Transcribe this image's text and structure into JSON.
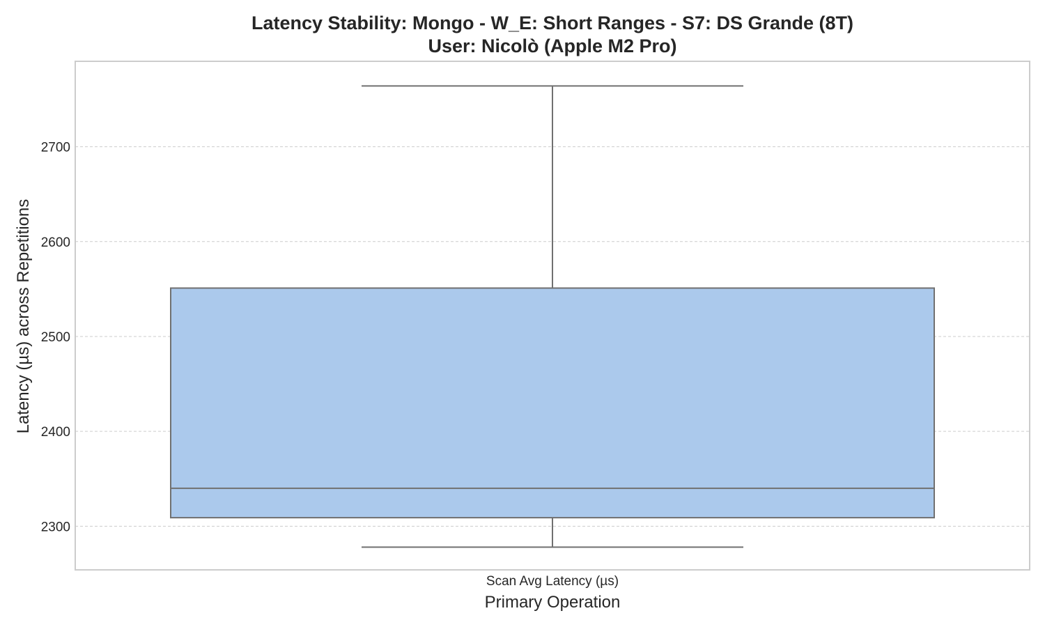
{
  "chart_data": {
    "type": "box",
    "title": "Latency Stability: Mongo - W_E: Short Ranges - S7: DS Grande (8T)",
    "subtitle": "User: Nicolò (Apple M2 Pro)",
    "xlabel": "Primary Operation",
    "ylabel": "Latency (µs) across Repetitions",
    "categories": [
      "Scan Avg Latency (µs)"
    ],
    "boxes": [
      {
        "category": "Scan Avg Latency (µs)",
        "whisker_low": 2278,
        "q1": 2309,
        "median": 2340,
        "q3": 2551,
        "whisker_high": 2764
      }
    ],
    "ylim": [
      2254,
      2790
    ],
    "yticks": [
      2300,
      2400,
      2500,
      2600,
      2700
    ],
    "grid": true,
    "colors": {
      "box_fill": "#abc9ec",
      "box_stroke": "#707070",
      "grid": "#cccccc",
      "frame": "#cccccc"
    }
  }
}
